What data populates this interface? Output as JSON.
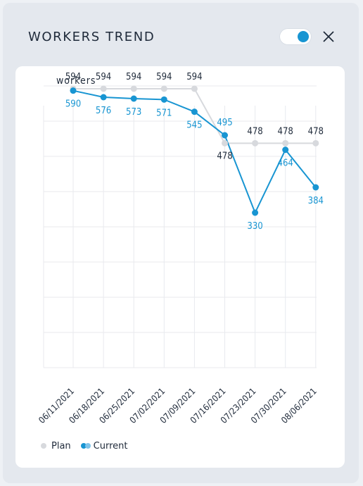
{
  "header": {
    "title": "WORKERS TREND",
    "toggle_on": true
  },
  "colors": {
    "plan": "#d7d9dd",
    "current": "#1895d2",
    "text": "#1f2a3a",
    "toggle_accent": "#1895d2"
  },
  "icons": {
    "toggle": "toggle-icon",
    "close": "close-icon"
  },
  "legend": {
    "plan_label": "Plan",
    "current_label": "Current"
  },
  "chart_data": {
    "type": "line",
    "ylabel": "workers",
    "xlabel": "",
    "categories": [
      "06/11/2021",
      "06/18/2021",
      "06/25/2021",
      "07/02/2021",
      "07/09/2021",
      "07/16/2021",
      "07/23/2021",
      "07/30/2021",
      "08/06/2021"
    ],
    "series": [
      {
        "name": "Plan",
        "values": [
          594,
          594,
          594,
          594,
          594,
          478,
          478,
          478,
          478
        ]
      },
      {
        "name": "Current",
        "values": [
          590,
          576,
          573,
          571,
          545,
          495,
          330,
          464,
          384
        ]
      }
    ],
    "ylim": [
      0,
      600
    ],
    "grid": true,
    "legend_position": "bottom-left"
  }
}
